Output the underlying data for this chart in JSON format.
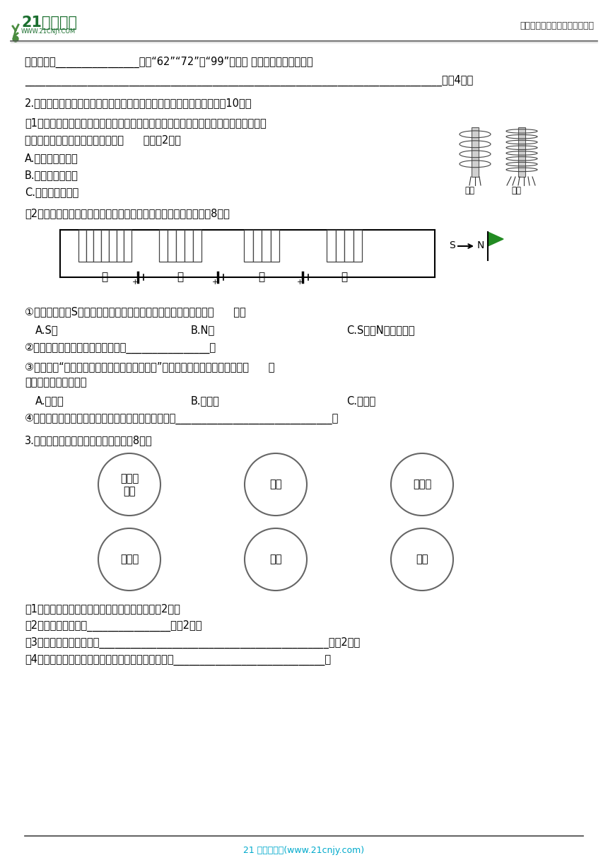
{
  "bg_color": "#ffffff",
  "header_logo_text": "21世纪教育",
  "header_logo_sub": "WWW.21CNJY.COM",
  "header_right": "中小学教育资源及组卷应用平台",
  "footer_text": "21 世纪教育网(www.21cnjy.com)",
  "footer_color": "#00aacc",
  "line1": "次数可能是________________（填“62”“72”或“99”）次。 产生这种现象的原因是",
  "line2": "________________________________________________________________________________。（4分）",
  "q2_title": "2.小明同学就迣上了电磁铁，回家后，就寻找材料进行了一系列研究。（10分）",
  "q2_1": "（1）小明找来导线、铁芯、干电池组装好电磁铁，要使电磁铁从图一的现象到图二的现",
  "q2_1b": "象，小明在操作时应采用的方法是（      ）。（2分）",
  "q2_A": "A.增加干电池数量",
  "q2_B": "B.增加大头针数量",
  "q2_C": "C.改变干电池方向",
  "q2_2": "（2）如下图所示，小明将导线缠绕在四个铁芯上，并接通电源。（8分）",
  "circuit_labels": [
    "甲",
    "乙",
    "丙",
    "丁"
  ],
  "q2_sub1": "①若将小磁针的S极靠近丁的右端，小磁针被吸引，则丁的右端是（      ）。",
  "q2_sub1_A": "A.S极",
  "q2_sub1_B": "B.N极",
  "q2_sub1_C": "C.S极和N极都有可能",
  "q2_sub2": "②甲、乙、丙、丁中，磁性最强的是________________。",
  "q2_sub3": "③若想研究“磁性强弱与线圈缠绕圈数是否有关”，其他条件不变，则可以选择（      ）",
  "q2_sub3b": "电磁铁，做对比实验。",
  "q2_sub3_A": "A.甲和乙",
  "q2_sub3_B": "B.乙和丙",
  "q2_sub3_C": "C.乙和丁",
  "q2_sub4": "④用甲和丁两个电磁铁做对比实验，可以研究的问题是______________________________。",
  "q3_title": "3.下面是绿豆苗与周围的部分生物。（8分）",
  "circle_top": [
    "结网性\n蜘蛛",
    "青蛙",
    "食虫鸟"
  ],
  "circle_bottom": [
    "绿豆苗",
    "蚁虫",
    "瓢虫"
  ],
  "q3_1": "（1）请用箭头表示出上面生物间的食物关系。（2分）",
  "q3_2": "（2）图中的生产者是________________。（2分）",
  "q3_3": "（3）请写出一条食物链：____________________________________________。（2分）",
  "q3_4": "（4）如果瓢虫的数量突然大幅减少，绿豆苗的数量会_____________________________。"
}
